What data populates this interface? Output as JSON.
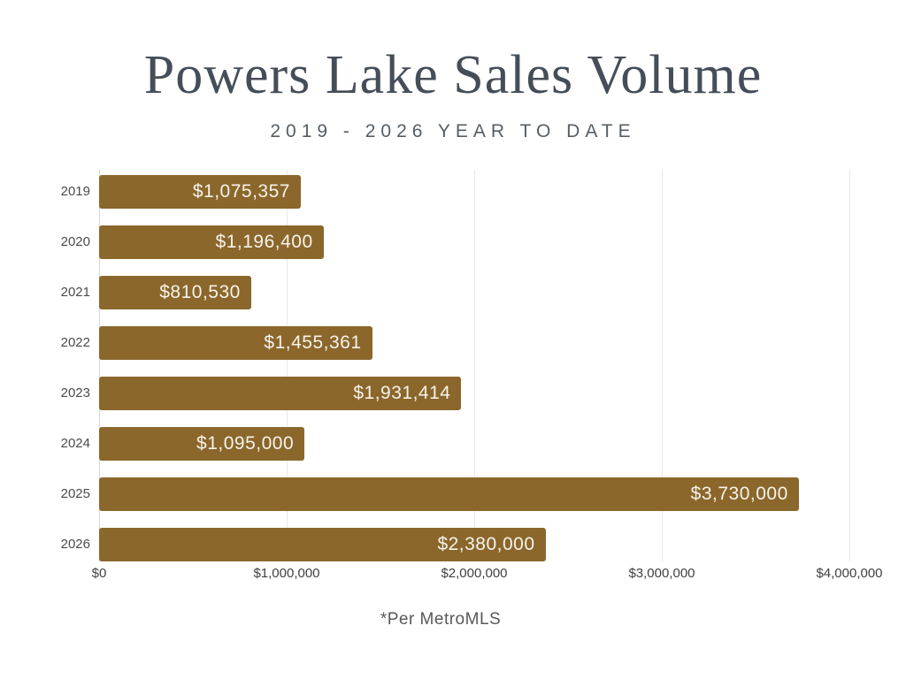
{
  "header": {
    "title": "Powers Lake Sales Volume",
    "subtitle": "2019 - 2026 YEAR TO DATE"
  },
  "chart_data": {
    "type": "bar",
    "orientation": "horizontal",
    "title": "Powers Lake Sales Volume",
    "subtitle": "2019 - 2026 YEAR TO DATE",
    "categories": [
      "2019",
      "2020",
      "2021",
      "2022",
      "2023",
      "2024",
      "2025",
      "2026"
    ],
    "values": [
      1075357,
      1196400,
      810530,
      1455361,
      1931414,
      1095000,
      3730000,
      2380000
    ],
    "value_labels": [
      "$1,075,357",
      "$1,196,400",
      "$810,530",
      "$1,455,361",
      "$1,931,414",
      "$1,095,000",
      "$3,730,000",
      "$2,380,000"
    ],
    "xlim": [
      0,
      4000000
    ],
    "x_ticks": [
      0,
      1000000,
      2000000,
      3000000,
      4000000
    ],
    "x_tick_labels": [
      "$0",
      "$1,000,000",
      "$2,000,000",
      "$3,000,000",
      "$4,000,000"
    ],
    "grid": true,
    "legend": false,
    "bar_color": "#8b672c",
    "value_label_color": "#f7f3ea",
    "category_label_color": "#4b4b4b",
    "tick_label_color": "#404040",
    "gridline_color": "#e9e9e9",
    "axis_line_color": "#d6d6d6"
  },
  "footer": {
    "note": "*Per MetroMLS",
    "color": "#595959"
  },
  "colors": {
    "background": "#ffffff",
    "title": "#454e58",
    "subtitle": "#555d66"
  }
}
